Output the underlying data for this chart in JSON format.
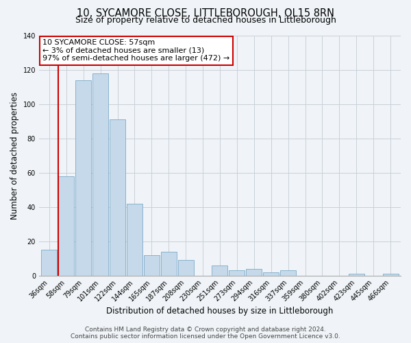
{
  "title": "10, SYCAMORE CLOSE, LITTLEBOROUGH, OL15 8RN",
  "subtitle": "Size of property relative to detached houses in Littleborough",
  "xlabel": "Distribution of detached houses by size in Littleborough",
  "ylabel": "Number of detached properties",
  "bar_labels": [
    "36sqm",
    "58sqm",
    "79sqm",
    "101sqm",
    "122sqm",
    "144sqm",
    "165sqm",
    "187sqm",
    "208sqm",
    "230sqm",
    "251sqm",
    "273sqm",
    "294sqm",
    "316sqm",
    "337sqm",
    "359sqm",
    "380sqm",
    "402sqm",
    "423sqm",
    "445sqm",
    "466sqm"
  ],
  "bar_values": [
    15,
    58,
    114,
    118,
    91,
    42,
    12,
    14,
    9,
    0,
    6,
    3,
    4,
    2,
    3,
    0,
    0,
    0,
    1,
    0,
    1
  ],
  "bar_color": "#c6d9ea",
  "bar_edge_color": "#7aaac8",
  "highlight_bar_index": 1,
  "highlight_color": "#cc0000",
  "ylim": [
    0,
    140
  ],
  "yticks": [
    0,
    20,
    40,
    60,
    80,
    100,
    120,
    140
  ],
  "annotation_title": "10 SYCAMORE CLOSE: 57sqm",
  "annotation_line1": "← 3% of detached houses are smaller (13)",
  "annotation_line2": "97% of semi-detached houses are larger (472) →",
  "annotation_box_color": "#ffffff",
  "annotation_box_edgecolor": "#cc0000",
  "footer_line1": "Contains HM Land Registry data © Crown copyright and database right 2024.",
  "footer_line2": "Contains public sector information licensed under the Open Government Licence v3.0.",
  "background_color": "#f0f4f8",
  "grid_color": "#c8d0d8",
  "title_fontsize": 10.5,
  "subtitle_fontsize": 9,
  "axis_label_fontsize": 8.5,
  "tick_fontsize": 7,
  "annotation_fontsize": 8,
  "footer_fontsize": 6.5
}
